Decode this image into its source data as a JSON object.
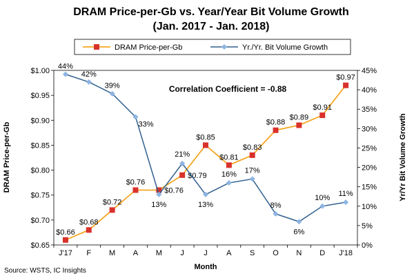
{
  "chart_data": {
    "type": "line",
    "title": "DRAM Price-per-Gb vs. Year/Year Bit Volume Growth",
    "subtitle": "(Jan. 2017 - Jan. 2018)",
    "categories": [
      "J'17",
      "F",
      "M",
      "A",
      "M",
      "J",
      "J",
      "A",
      "S",
      "O",
      "N",
      "D",
      "J'18"
    ],
    "xlabel": "Month",
    "ylabel_left": "DRAM Price-per-Gb",
    "ylabel_right": "Yr/Yr Bit Volume Growth",
    "y_left": {
      "range": [
        0.65,
        1.0
      ],
      "ticks": [
        0.65,
        0.7,
        0.75,
        0.8,
        0.85,
        0.9,
        0.95,
        1.0
      ],
      "tick_labels": [
        "$0.65",
        "$0.70",
        "$0.75",
        "$0.80",
        "$0.85",
        "$0.90",
        "$0.95",
        "$1.00"
      ]
    },
    "y_right": {
      "range": [
        0,
        45
      ],
      "ticks": [
        0,
        5,
        10,
        15,
        20,
        25,
        30,
        35,
        40,
        45
      ],
      "tick_labels": [
        "0%",
        "5%",
        "10%",
        "15%",
        "20%",
        "25%",
        "30%",
        "35%",
        "40%",
        "45%"
      ]
    },
    "series": [
      {
        "name": "DRAM Price-per-Gb",
        "axis": "left",
        "color": "#F5A623",
        "marker_color": "#D9312B",
        "values": [
          0.66,
          0.68,
          0.72,
          0.76,
          0.76,
          0.79,
          0.85,
          0.81,
          0.83,
          0.88,
          0.89,
          0.91,
          0.97
        ],
        "labels": [
          "$0.66",
          "$0.68",
          "$0.72",
          "$0.76",
          "$0.76",
          "$0.79",
          "$0.85",
          "$0.81",
          "$0.83",
          "$0.88",
          "$0.89",
          "$0.91",
          "$0.97"
        ]
      },
      {
        "name": "Yr./Yr. Bit Volume Growth",
        "axis": "right",
        "color": "#2E5E8E",
        "marker_color": "#8DB4E2",
        "values": [
          44,
          42,
          39,
          33,
          13,
          21,
          13,
          16,
          17,
          8,
          6,
          10,
          11
        ],
        "labels": [
          "44%",
          "42%",
          "39%",
          "33%",
          "13%",
          "21%",
          "13%",
          "16%",
          "17%",
          "8%",
          "6%",
          "10%",
          "11%"
        ]
      }
    ],
    "annotation": "Correlation Coefficient = -0.88",
    "source": "Source: WSTS, IC Insights",
    "legend_position": "top",
    "grid": false
  }
}
